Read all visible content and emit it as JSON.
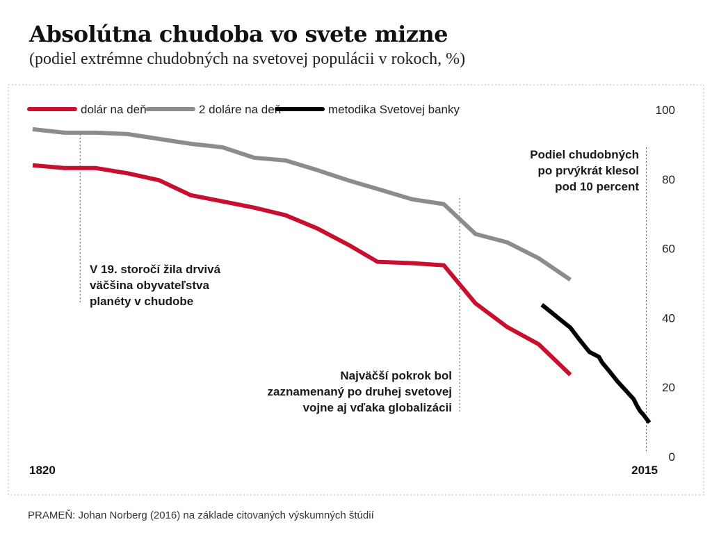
{
  "title": "Absolútna chudoba vo svete mizne",
  "subtitle": "(podiel extrémne chudobných na svetovej populácii v rokoch, %)",
  "source": "PRAMEŇ: Johan Norberg (2016) na základe citovaných výskumných štúdií",
  "annotations": {
    "a19": [
      "V 19. storočí žila drvivá",
      "väčšina obyvateľstva",
      "planéty v chudobe"
    ],
    "postwar": [
      "Najväčší pokrok bol",
      "zaznamenaný po druhej svetovej",
      "vojne aj vďaka globalizácii"
    ],
    "below10": [
      "Podiel chudobných",
      "po prvýkrát klesol",
      "pod 10 percent"
    ]
  },
  "colors": {
    "red": "#c8102e",
    "gray": "#8c8c8c",
    "black": "#000000",
    "guide": "#555555"
  },
  "chart_data": {
    "type": "line",
    "title": "Absolútna chudoba vo svete mizne",
    "xlabel": "",
    "ylabel": "",
    "xlim": [
      1820,
      2015
    ],
    "ylim": [
      0,
      100
    ],
    "x_tick_labels": [
      "1820",
      "2015"
    ],
    "y_ticks": [
      0,
      20,
      40,
      60,
      80,
      100
    ],
    "grid": false,
    "legend_position": "top-left",
    "series": [
      {
        "name": "dolár na deň",
        "color": "#c8102e",
        "x": [
          1820,
          1830,
          1840,
          1850,
          1860,
          1870,
          1880,
          1890,
          1900,
          1910,
          1920,
          1929,
          1940,
          1950,
          1960,
          1970,
          1980,
          1990
        ],
        "values": [
          84,
          83.2,
          83.2,
          81.7,
          79.7,
          75.4,
          73.6,
          71.8,
          69.6,
          65.8,
          61,
          56.2,
          55.8,
          55.2,
          44.2,
          37.4,
          32.4,
          23.6
        ]
      },
      {
        "name": "2 doláre na deň",
        "color": "#8c8c8c",
        "x": [
          1820,
          1830,
          1840,
          1850,
          1860,
          1870,
          1880,
          1890,
          1900,
          1910,
          1920,
          1929,
          1940,
          1950,
          1960,
          1970,
          1980,
          1990
        ],
        "values": [
          94.4,
          93.4,
          93.4,
          93,
          91.6,
          90.2,
          89.2,
          86.2,
          85.4,
          82.6,
          79.6,
          77.2,
          74.2,
          72.8,
          64.2,
          61.8,
          57.2,
          51
        ]
      },
      {
        "name": "metodika Svetovej banky",
        "color": "#000000",
        "x": [
          1981,
          1984,
          1987,
          1990,
          1993,
          1996,
          1999,
          2000,
          2002,
          2005,
          2008,
          2010,
          2011,
          2012,
          2013,
          2015
        ],
        "values": [
          43.8,
          41.6,
          39.4,
          37.2,
          33.6,
          30.2,
          28.8,
          27.2,
          25,
          21.6,
          18.6,
          16.6,
          14.8,
          13.2,
          12.2,
          9.8
        ]
      }
    ],
    "guides_x": [
      1835,
      1955,
      2014
    ]
  }
}
